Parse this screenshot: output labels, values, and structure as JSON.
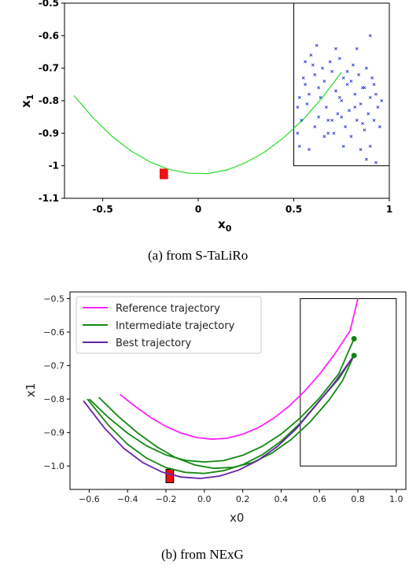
{
  "chart_data": [
    {
      "type": "scatter",
      "caption": "(a)  from S-TaLiRo",
      "xlabel": "x",
      "xlabel_sub": "0",
      "ylabel": "x",
      "ylabel_sub": "1",
      "xlim": [
        -0.7,
        1.0
      ],
      "ylim": [
        -1.1,
        -0.5
      ],
      "xticks": [
        -0.5,
        0,
        0.5,
        1
      ],
      "xtick_labels": [
        "-0.5",
        "0",
        "0.5",
        "1"
      ],
      "yticks": [
        -0.5,
        -0.6,
        -0.7,
        -0.8,
        -0.9,
        -1.0,
        -1.1
      ],
      "ytick_labels": [
        "-0.5",
        "-0.6",
        "-0.7",
        "-0.8",
        "-0.9",
        "-1",
        "-1.1"
      ],
      "series": [
        {
          "kind": "line",
          "color": "#22dd22",
          "x": [
            -0.65,
            -0.55,
            -0.45,
            -0.35,
            -0.25,
            -0.15,
            -0.05,
            0.05,
            0.15,
            0.25,
            0.35,
            0.45,
            0.55,
            0.65,
            0.75
          ],
          "y": [
            -0.784,
            -0.853,
            -0.91,
            -0.955,
            -0.989,
            -1.012,
            -1.023,
            -1.024,
            -1.013,
            -0.99,
            -0.957,
            -0.912,
            -0.857,
            -0.79,
            -0.712
          ]
        },
        {
          "kind": "points",
          "color": "#2233cc",
          "marker": "x",
          "points": [
            [
              0.55,
              -0.73
            ],
            [
              0.56,
              -0.75
            ],
            [
              0.58,
              -0.78
            ],
            [
              0.57,
              -0.81
            ],
            [
              0.6,
              -0.69
            ],
            [
              0.61,
              -0.72
            ],
            [
              0.62,
              -0.63
            ],
            [
              0.63,
              -0.76
            ],
            [
              0.64,
              -0.79
            ],
            [
              0.65,
              -0.7
            ],
            [
              0.66,
              -0.74
            ],
            [
              0.67,
              -0.82
            ],
            [
              0.68,
              -0.86
            ],
            [
              0.69,
              -0.68
            ],
            [
              0.7,
              -0.71
            ],
            [
              0.71,
              -0.9
            ],
            [
              0.72,
              -0.77
            ],
            [
              0.73,
              -0.84
            ],
            [
              0.74,
              -0.67
            ],
            [
              0.75,
              -0.8
            ],
            [
              0.76,
              -0.73
            ],
            [
              0.77,
              -0.88
            ],
            [
              0.78,
              -0.75
            ],
            [
              0.79,
              -0.83
            ],
            [
              0.8,
              -0.91
            ],
            [
              0.81,
              -0.69
            ],
            [
              0.82,
              -0.78
            ],
            [
              0.83,
              -0.86
            ],
            [
              0.84,
              -0.72
            ],
            [
              0.85,
              -0.81
            ],
            [
              0.86,
              -0.76
            ],
            [
              0.87,
              -0.89
            ],
            [
              0.88,
              -0.7
            ],
            [
              0.89,
              -0.84
            ],
            [
              0.9,
              -0.79
            ],
            [
              0.91,
              -0.73
            ],
            [
              0.92,
              -0.86
            ],
            [
              0.93,
              -0.78
            ],
            [
              0.94,
              -0.82
            ],
            [
              0.95,
              -0.88
            ],
            [
              0.53,
              -0.79
            ],
            [
              0.54,
              -0.86
            ],
            [
              0.52,
              -0.9
            ],
            [
              0.56,
              -0.68
            ],
            [
              0.59,
              -0.66
            ],
            [
              0.66,
              -0.91
            ],
            [
              0.7,
              -0.86
            ],
            [
              0.75,
              -0.85
            ],
            [
              0.8,
              -0.74
            ],
            [
              0.85,
              -0.95
            ],
            [
              0.88,
              -0.98
            ],
            [
              0.9,
              -0.94
            ],
            [
              0.93,
              -0.99
            ],
            [
              0.96,
              -0.8
            ],
            [
              0.72,
              -0.64
            ],
            [
              0.78,
              -0.71
            ],
            [
              0.83,
              -0.64
            ],
            [
              0.9,
              -0.6
            ],
            [
              0.87,
              -0.76
            ],
            [
              0.63,
              -0.85
            ],
            [
              0.52,
              -0.82
            ],
            [
              0.58,
              -0.95
            ],
            [
              0.68,
              -0.9
            ],
            [
              0.76,
              -0.94
            ],
            [
              0.82,
              -0.82
            ],
            [
              0.92,
              -0.75
            ],
            [
              0.61,
              -0.88
            ],
            [
              0.74,
              -0.79
            ],
            [
              0.86,
              -0.87
            ],
            [
              0.53,
              -0.94
            ]
          ]
        }
      ],
      "rectangles": [
        {
          "x": [
            0.5,
            1.0
          ],
          "y": [
            -1.0,
            -0.5
          ],
          "fill": "none",
          "stroke": "#000000"
        },
        {
          "x": [
            -0.2,
            -0.16
          ],
          "y": [
            -1.04,
            -1.01
          ],
          "fill": "#ee1111",
          "stroke": "#ee1111"
        }
      ]
    },
    {
      "type": "line",
      "caption": "(b)  from NExG",
      "xlabel": "x0",
      "ylabel": "x1",
      "xlim": [
        -0.7,
        1.05
      ],
      "ylim": [
        -1.07,
        -0.48
      ],
      "xticks": [
        -0.6,
        -0.4,
        -0.2,
        0.0,
        0.2,
        0.4,
        0.6,
        0.8,
        1.0
      ],
      "xtick_labels": [
        "−0.6",
        "−0.4",
        "−0.2",
        "0.0",
        "0.2",
        "0.4",
        "0.6",
        "0.8",
        "1.0"
      ],
      "yticks": [
        -0.5,
        -0.6,
        -0.7,
        -0.8,
        -0.9,
        -1.0
      ],
      "ytick_labels": [
        "−0.5",
        "−0.6",
        "−0.7",
        "−0.8",
        "−0.9",
        "−1.0"
      ],
      "legend": [
        {
          "label": "Reference trajectory",
          "color": "#ff22ff"
        },
        {
          "label": "Intermediate trajectory",
          "color": "#118811"
        },
        {
          "label": "Best trajectory",
          "color": "#6622aa"
        }
      ],
      "series": [
        {
          "name": "Reference trajectory",
          "color": "#ff22ff",
          "x": [
            -0.44,
            -0.36,
            -0.28,
            -0.2,
            -0.12,
            -0.04,
            0.04,
            0.12,
            0.2,
            0.28,
            0.36,
            0.44,
            0.52,
            0.6,
            0.68,
            0.76,
            0.8
          ],
          "y": [
            -0.786,
            -0.822,
            -0.855,
            -0.882,
            -0.902,
            -0.915,
            -0.92,
            -0.917,
            -0.905,
            -0.886,
            -0.858,
            -0.822,
            -0.778,
            -0.726,
            -0.665,
            -0.596,
            -0.5
          ]
        },
        {
          "name": "Intermediate trajectory",
          "color": "#118811",
          "x": [
            -0.6,
            -0.5,
            -0.4,
            -0.3,
            -0.2,
            -0.1,
            0.0,
            0.1,
            0.2,
            0.3,
            0.4,
            0.5,
            0.6,
            0.7,
            0.78
          ],
          "y": [
            -0.8,
            -0.855,
            -0.902,
            -0.94,
            -0.967,
            -0.983,
            -0.988,
            -0.984,
            -0.968,
            -0.942,
            -0.905,
            -0.856,
            -0.797,
            -0.725,
            -0.62
          ]
        },
        {
          "name": "Intermediate trajectory",
          "color": "#118811",
          "x": [
            -0.55,
            -0.45,
            -0.35,
            -0.25,
            -0.15,
            -0.05,
            0.05,
            0.15,
            0.25,
            0.35,
            0.45,
            0.55,
            0.65,
            0.72,
            0.78
          ],
          "y": [
            -0.795,
            -0.851,
            -0.9,
            -0.942,
            -0.975,
            -0.997,
            -1.007,
            -1.004,
            -0.99,
            -0.962,
            -0.922,
            -0.869,
            -0.803,
            -0.745,
            -0.67
          ]
        },
        {
          "name": "Intermediate trajectory",
          "color": "#118811",
          "x": [
            -0.61,
            -0.5,
            -0.4,
            -0.3,
            -0.2,
            -0.1,
            0.0,
            0.1,
            0.2,
            0.3,
            0.4,
            0.5,
            0.6,
            0.7,
            0.78
          ],
          "y": [
            -0.8,
            -0.878,
            -0.935,
            -0.977,
            -1.005,
            -1.019,
            -1.022,
            -1.014,
            -0.996,
            -0.967,
            -0.926,
            -0.872,
            -0.805,
            -0.74,
            -0.67
          ]
        },
        {
          "name": "Best trajectory",
          "color": "#6622aa",
          "x": [
            -0.63,
            -0.52,
            -0.42,
            -0.32,
            -0.22,
            -0.12,
            -0.02,
            0.08,
            0.18,
            0.28,
            0.38,
            0.48,
            0.58,
            0.68,
            0.78
          ],
          "y": [
            -0.805,
            -0.887,
            -0.947,
            -0.99,
            -1.018,
            -1.033,
            -1.037,
            -1.03,
            -1.012,
            -0.983,
            -0.942,
            -0.888,
            -0.82,
            -0.75,
            -0.67
          ]
        }
      ],
      "endpoints": [
        {
          "x": 0.78,
          "y": -0.62,
          "color": "#118811"
        },
        {
          "x": 0.78,
          "y": -0.67,
          "color": "#118811"
        }
      ],
      "rectangles": [
        {
          "x": [
            0.5,
            1.0
          ],
          "y": [
            -1.0,
            -0.5
          ],
          "fill": "none",
          "stroke": "#000000"
        },
        {
          "x": [
            -0.2,
            -0.16
          ],
          "y": [
            -1.05,
            -1.01
          ],
          "fill": "#ee1111",
          "stroke": "#000000"
        }
      ]
    }
  ]
}
